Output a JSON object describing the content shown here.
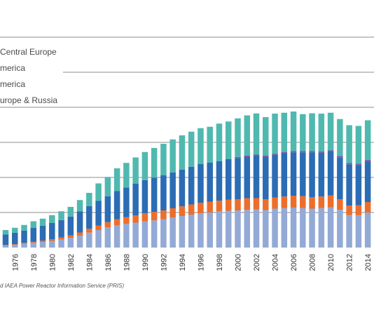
{
  "source_note": "d IAEA Power Reactor Information Service (PRIS)",
  "chart_data": {
    "type": "bar",
    "stacked": true,
    "categories": [
      "1975",
      "1976",
      "1977",
      "1978",
      "1979",
      "1980",
      "1981",
      "1982",
      "1983",
      "1984",
      "1985",
      "1986",
      "1987",
      "1988",
      "1989",
      "1990",
      "1991",
      "1992",
      "1993",
      "1994",
      "1995",
      "1996",
      "1997",
      "1998",
      "1999",
      "2000",
      "2001",
      "2002",
      "2003",
      "2004",
      "2005",
      "2006",
      "2007",
      "2008",
      "2009",
      "2010",
      "2011",
      "2012",
      "2013",
      "2014"
    ],
    "tick_labels": [
      "1976",
      "1978",
      "1980",
      "1982",
      "1984",
      "1986",
      "1988",
      "1990",
      "1992",
      "1994",
      "1996",
      "1998",
      "2000",
      "2002",
      "2004",
      "2006",
      "2008",
      "2010",
      "2012",
      "2014"
    ],
    "series": [
      {
        "name": "",
        "color": "#93aad6",
        "values": [
          12,
          16,
          22,
          28,
          32,
          38,
          45,
          55,
          68,
          85,
          100,
          115,
          128,
          135,
          142,
          150,
          155,
          162,
          172,
          180,
          188,
          196,
          200,
          205,
          210,
          212,
          215,
          218,
          214,
          222,
          225,
          228,
          225,
          222,
          225,
          230,
          215,
          185,
          185,
          200
        ]
      },
      {
        "name": "",
        "color": "#ec6e2c",
        "values": [
          3,
          4,
          5,
          6,
          8,
          10,
          12,
          14,
          18,
          22,
          26,
          30,
          34,
          38,
          42,
          45,
          48,
          50,
          52,
          55,
          58,
          60,
          62,
          62,
          64,
          64,
          66,
          64,
          62,
          64,
          66,
          68,
          68,
          66,
          66,
          68,
          60,
          55,
          56,
          60
        ]
      },
      {
        "name": "America",
        "color": "#2b6cb5",
        "values": [
          60,
          65,
          70,
          78,
          85,
          92,
          100,
          108,
          120,
          130,
          140,
          148,
          160,
          170,
          180,
          190,
          195,
          200,
          205,
          210,
          215,
          220,
          222,
          225,
          230,
          235,
          235,
          240,
          240,
          240,
          245,
          247,
          250,
          255,
          250,
          248,
          240,
          235,
          230,
          233
        ]
      },
      {
        "name": "urope & Russia",
        "color": "#50b9af",
        "values": [
          25,
          28,
          32,
          38,
          40,
          45,
          50,
          55,
          65,
          75,
          100,
          110,
          130,
          140,
          150,
          160,
          170,
          180,
          188,
          195,
          200,
          205,
          205,
          215,
          215,
          220,
          230,
          235,
          220,
          230,
          225,
          225,
          210,
          215,
          215,
          215,
          210,
          215,
          215,
          225
        ]
      }
    ],
    "accent_segments": {
      "color": "#7a5aa8",
      "values": [
        0,
        0,
        0,
        0,
        0,
        0,
        0,
        0,
        0,
        0,
        0,
        0,
        0,
        0,
        0,
        0,
        0,
        0,
        0,
        0,
        0,
        0,
        0,
        0,
        0,
        6,
        8,
        8,
        8,
        8,
        8,
        8,
        8,
        8,
        8,
        8,
        8,
        8,
        8,
        8
      ]
    },
    "legend": [
      "Central Europe",
      "merica",
      "merica",
      "urope & Russia"
    ],
    "ylim": [
      0,
      1200
    ],
    "gridlines": [
      200,
      400,
      600,
      800,
      1000,
      1200
    ],
    "grid": true
  }
}
